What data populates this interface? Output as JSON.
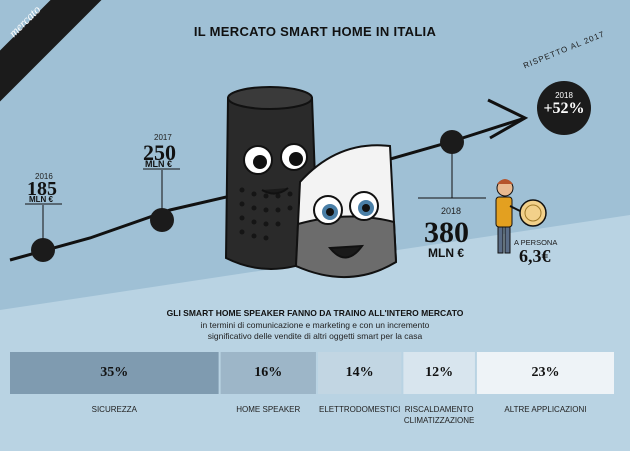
{
  "tag": "mercato",
  "title": "IL MERCATO SMART HOME IN ITALIA",
  "colors": {
    "background": "#9fc0d5",
    "lower_background": "#b9d3e3",
    "dark": "#1b1b1b"
  },
  "milestones": [
    {
      "year": "2016",
      "value": "185",
      "unit": "MLN €"
    },
    {
      "year": "2017",
      "value": "250",
      "unit": "MLN €"
    },
    {
      "year": "2018",
      "value": "380",
      "unit": "MLN €"
    }
  ],
  "growth": {
    "caption": "RISPETTO AL 2017",
    "year": "2018",
    "value": "+52%"
  },
  "per_person": {
    "label": "A PERSONA",
    "value": "6,3€"
  },
  "text": {
    "lead": "GLI SMART HOME SPEAKER  FANNO DA TRAINO ALL'INTERO MERCATO",
    "sub1": "in termini di comunicazione e marketing e con un incremento",
    "sub2": "significativo delle vendite di altri oggetti smart per la casa"
  },
  "chart_data": {
    "type": "bar",
    "orientation": "stacked-horizontal",
    "categories": [
      "SICUREZZA",
      "HOME SPEAKER",
      "ELETTRODOMESTICI",
      "RISCALDAMENTO CLIMATIZZAZIONE",
      "ALTRE APPLICAZIONI"
    ],
    "category_lines": [
      [
        "SICUREZZA"
      ],
      [
        "HOME SPEAKER"
      ],
      [
        "ELETTRODOMESTICI"
      ],
      [
        "RISCALDAMENTO",
        "CLIMATIZZAZIONE"
      ],
      [
        "ALTRE APPLICAZIONI"
      ]
    ],
    "values": [
      35,
      16,
      14,
      12,
      23
    ],
    "labels": [
      "35%",
      "16%",
      "14%",
      "12%",
      "23%"
    ],
    "colors": [
      "#7f9bb0",
      "#9db6c8",
      "#c2d6e3",
      "#d8e5ee",
      "#eef3f7"
    ]
  }
}
